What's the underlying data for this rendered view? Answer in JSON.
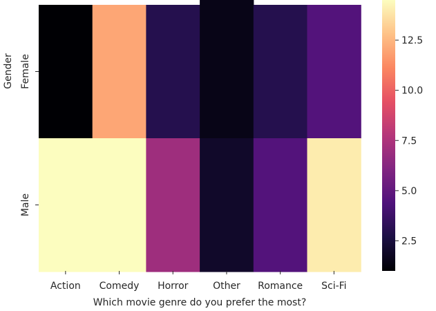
{
  "chart_data": {
    "type": "heatmap",
    "xlabel": "Which movie genre do you prefer the most?",
    "ylabel": "Gender",
    "x_categories": [
      "Action",
      "Comedy",
      "Horror",
      "Other",
      "Romance",
      "Sci-Fi"
    ],
    "y_categories": [
      "Female",
      "Male"
    ],
    "values": [
      [
        1,
        12,
        3,
        1.5,
        3,
        4.5
      ],
      [
        16,
        16,
        7,
        2,
        4.5,
        14
      ]
    ],
    "colormap": "magma",
    "colorbar": {
      "range": [
        1,
        14.5
      ],
      "ticks": [
        2.5,
        5.0,
        7.5,
        10.0,
        12.5
      ],
      "tick_labels": [
        "2.5",
        "5.0",
        "7.5",
        "10.0",
        "12.5"
      ]
    }
  }
}
